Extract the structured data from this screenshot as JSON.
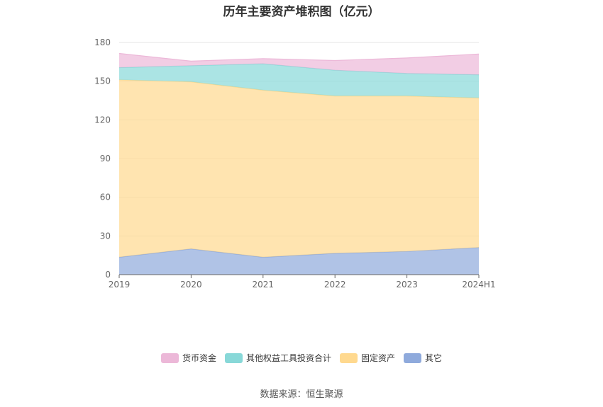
{
  "chart_data": {
    "type": "area",
    "stacked": true,
    "title": "历年主要资产堆积图（亿元）",
    "categories": [
      "2019",
      "2020",
      "2021",
      "2022",
      "2023",
      "2024H1"
    ],
    "ylim": [
      0,
      180
    ],
    "yticks": [
      "0",
      "30",
      "60",
      "90",
      "120",
      "150",
      "180"
    ],
    "grid": true,
    "legend_position": "bottom",
    "series": [
      {
        "name": "其它",
        "values": [
          13.5,
          20.0,
          13.5,
          16.5,
          18.0,
          21.0
        ],
        "color": "#8faadc"
      },
      {
        "name": "固定资产",
        "values": [
          137.5,
          129.5,
          129.5,
          122.0,
          120.5,
          116.0
        ],
        "color": "#ffd98f"
      },
      {
        "name": "其他权益工具投资合计",
        "values": [
          9.5,
          12.5,
          20.5,
          20.0,
          17.5,
          18.0
        ],
        "color": "#88d8d8"
      },
      {
        "name": "货币资金",
        "values": [
          11.0,
          3.5,
          4.0,
          7.5,
          12.0,
          16.0
        ],
        "color": "#ecb8d8"
      }
    ],
    "legend_order": [
      "货币资金",
      "其他权益工具投资合计",
      "固定资产",
      "其它"
    ]
  },
  "source": "数据来源：恒生聚源"
}
